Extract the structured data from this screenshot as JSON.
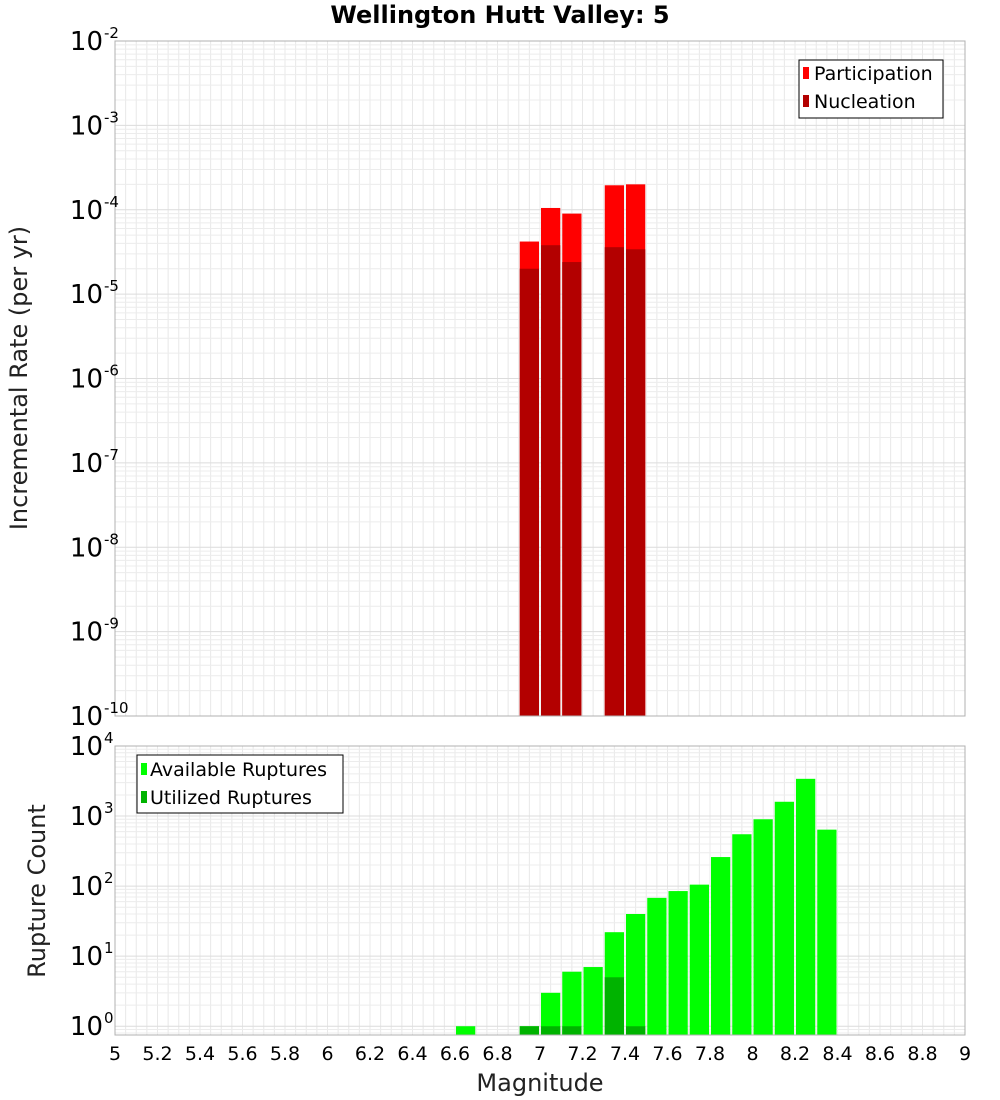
{
  "chart_data": [
    {
      "type": "bar",
      "title": "Wellington Hutt Valley: 5",
      "xlabel": "",
      "ylabel": "Incremental Rate (per yr)",
      "xlim": [
        5,
        9
      ],
      "ylim": [
        1e-10,
        0.01
      ],
      "yscale": "log",
      "grid": true,
      "legend_position": "top-right",
      "bar_width": 0.1,
      "series": [
        {
          "name": "Participation",
          "color": "#ff0000",
          "x": [
            6.95,
            7.05,
            7.15,
            7.35,
            7.45
          ],
          "values": [
            4.2e-05,
            0.000105,
            9e-05,
            0.000195,
            0.0002
          ]
        },
        {
          "name": "Nucleation",
          "color": "#b30000",
          "x": [
            6.95,
            7.05,
            7.15,
            7.35,
            7.45
          ],
          "values": [
            2e-05,
            3.8e-05,
            2.4e-05,
            3.6e-05,
            3.4e-05
          ]
        }
      ],
      "yticks": [
        {
          "base": "10",
          "exp": "-10"
        },
        {
          "base": "10",
          "exp": "-9"
        },
        {
          "base": "10",
          "exp": "-8"
        },
        {
          "base": "10",
          "exp": "-7"
        },
        {
          "base": "10",
          "exp": "-6"
        },
        {
          "base": "10",
          "exp": "-5"
        },
        {
          "base": "10",
          "exp": "-4"
        },
        {
          "base": "10",
          "exp": "-3"
        },
        {
          "base": "10",
          "exp": "-2"
        }
      ]
    },
    {
      "type": "bar",
      "title": "",
      "xlabel": "Magnitude",
      "ylabel": "Rupture Count",
      "xlim": [
        5,
        9
      ],
      "ylim": [
        0.75,
        10000
      ],
      "yscale": "log",
      "grid": true,
      "legend_position": "top-left",
      "bar_width": 0.1,
      "series": [
        {
          "name": "Available Ruptures",
          "color": "#00ff00",
          "x": [
            6.65,
            6.95,
            7.05,
            7.15,
            7.25,
            7.35,
            7.45,
            7.55,
            7.65,
            7.75,
            7.85,
            7.95,
            8.05,
            8.15,
            8.25,
            8.35
          ],
          "values": [
            1,
            1,
            3,
            6,
            7,
            22,
            40,
            68,
            85,
            105,
            260,
            550,
            900,
            1600,
            3400,
            640
          ]
        },
        {
          "name": "Utilized Ruptures",
          "color": "#00b300",
          "x": [
            6.95,
            7.05,
            7.15,
            7.35,
            7.45
          ],
          "values": [
            1,
            1,
            1,
            5,
            1
          ]
        }
      ],
      "xticks": [
        "5",
        "5.2",
        "5.4",
        "5.6",
        "5.8",
        "6",
        "6.2",
        "6.4",
        "6.6",
        "6.8",
        "7",
        "7.2",
        "7.4",
        "7.6",
        "7.8",
        "8",
        "8.2",
        "8.4",
        "8.6",
        "8.8",
        "9"
      ],
      "yticks": [
        {
          "base": "10",
          "exp": "0"
        },
        {
          "base": "10",
          "exp": "1"
        },
        {
          "base": "10",
          "exp": "2"
        },
        {
          "base": "10",
          "exp": "3"
        },
        {
          "base": "10",
          "exp": "4"
        }
      ]
    }
  ]
}
